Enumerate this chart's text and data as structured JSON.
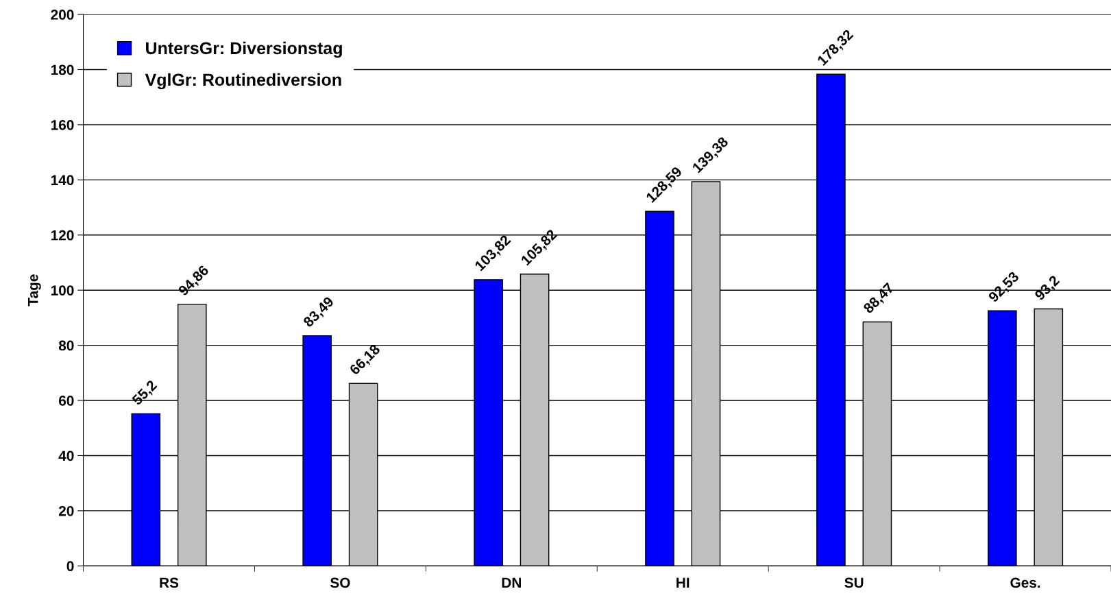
{
  "chart_data": {
    "type": "bar",
    "ylabel": "Tage",
    "categories": [
      "RS",
      "SO",
      "DN",
      "HI",
      "SU",
      "Ges."
    ],
    "series": [
      {
        "name": "UntersGr: Diversionstag",
        "color": "#0000ff",
        "values": [
          55.2,
          83.49,
          103.82,
          128.59,
          178.32,
          92.53
        ],
        "value_labels": [
          "55,2",
          "83,49",
          "103,82",
          "128,59",
          "178,32",
          "92,53"
        ]
      },
      {
        "name": "VglGr: Routinediversion",
        "color": "#c0c0c0",
        "values": [
          94.86,
          66.18,
          105.82,
          139.38,
          88.47,
          93.2
        ],
        "value_labels": [
          "94,86",
          "66,18",
          "105,82",
          "139,38",
          "88,47",
          "93,2"
        ]
      }
    ],
    "ylim": [
      0,
      200
    ],
    "yticks": [
      0,
      20,
      40,
      60,
      80,
      100,
      120,
      140,
      160,
      180,
      200
    ],
    "grid": "y",
    "legend": "top left"
  }
}
